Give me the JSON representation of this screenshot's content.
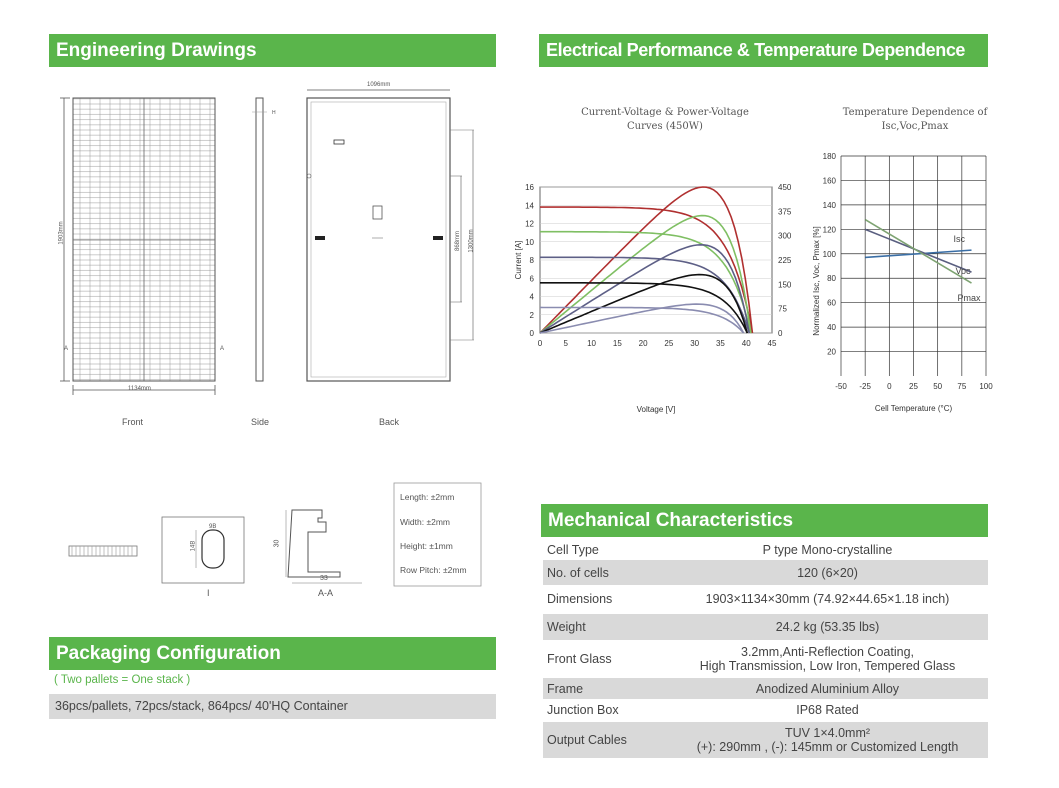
{
  "headers": {
    "engineering": "Engineering Drawings",
    "electrical": "Electrical Performance & Temperature Dependence",
    "mechanical": "Mechanical Characteristics",
    "packaging": "Packaging Configuration"
  },
  "drawings": {
    "front": "Front",
    "side": "Side",
    "back": "Back",
    "width_dim": "1134mm",
    "height_dim": "1903mm",
    "back_width_dim": "1096mm",
    "back_pitch_dim": "868mm",
    "back_height_dim": "1300mm",
    "section_i": "I",
    "section_aa": "A-A",
    "frame_30": "30",
    "frame_33": "33",
    "hole_a": "9B",
    "hole_b": "14B",
    "tol_length": "Length: ±2mm",
    "tol_width": "Width: ±2mm",
    "tol_height": "Height: ±1mm",
    "tol_rowpitch": "Row Pitch: ±2mm"
  },
  "iv_chart_text": {
    "title_line1": "Current-Voltage & Power-Voltage",
    "title_line2": "Curves (450W)",
    "xlabel": "Voltage [V]",
    "ylabel": "Current [A]",
    "y2label": "Power [W]"
  },
  "temp_chart_text": {
    "title_line1": "Temperature Dependence of",
    "title_line2": "Isc,Voc,Pmax",
    "xlabel": "Cell Temperature (°C)",
    "ylabel": "Normalized Isc, Voc, Pmax [%]"
  },
  "chart_data": [
    {
      "type": "line",
      "title": "Current-Voltage & Power-Voltage Curves (450W)",
      "xlabel": "Voltage [V]",
      "ylabel": "Current [A]",
      "y2label": "Power [W]",
      "xlim": [
        0,
        45
      ],
      "ylim": [
        0,
        16
      ],
      "y2lim": [
        0,
        450
      ],
      "xticks": [
        0,
        5,
        10,
        15,
        20,
        25,
        30,
        35,
        40,
        45
      ],
      "yticks": [
        0,
        2,
        4,
        6,
        8,
        10,
        12,
        14,
        16
      ],
      "y2ticks": [
        0,
        75,
        150,
        225,
        300,
        375,
        450
      ],
      "series": [
        {
          "color": "#b03030",
          "isc": 13.8,
          "voc": 41.2,
          "pmax": 450,
          "vmp": 34.5
        },
        {
          "color": "#7fbf63",
          "isc": 11.1,
          "voc": 40.9,
          "pmax": 362,
          "vmp": 34.2
        },
        {
          "color": "#5d5f86",
          "isc": 8.3,
          "voc": 40.6,
          "pmax": 272,
          "vmp": 33.9
        },
        {
          "color": "#111111",
          "isc": 5.5,
          "voc": 40.2,
          "pmax": 180,
          "vmp": 33.6
        },
        {
          "color": "#8a8cb0",
          "isc": 2.8,
          "voc": 39.5,
          "pmax": 89,
          "vmp": 33.2
        }
      ]
    },
    {
      "type": "line",
      "title": "Temperature Dependence of Isc,Voc,Pmax",
      "xlabel": "Cell Temperature (°C)",
      "ylabel": "Normalized Isc, Voc, Pmax [%]",
      "xlim": [
        -50,
        100
      ],
      "ylim": [
        0,
        180
      ],
      "xticks": [
        -50,
        -25,
        0,
        25,
        50,
        75,
        100
      ],
      "yticks": [
        20,
        40,
        60,
        80,
        100,
        120,
        140,
        160,
        180
      ],
      "series": [
        {
          "name": "Isc",
          "x": [
            -25,
            85
          ],
          "y": [
            97,
            103
          ],
          "color": "#3a6ea5"
        },
        {
          "name": "Voc",
          "x": [
            -25,
            85
          ],
          "y": [
            120,
            85
          ],
          "color": "#5a5f80"
        },
        {
          "name": "Pmax",
          "x": [
            -25,
            85
          ],
          "y": [
            128,
            76
          ],
          "color": "#7ea372"
        }
      ]
    }
  ],
  "mechanical": [
    {
      "label": "Cell Type",
      "value1": "P type Mono-crystalline",
      "value2": ""
    },
    {
      "label": "No. of cells",
      "value1": "120 (6×20)",
      "value2": ""
    },
    {
      "label": "Dimensions",
      "value1": "1903×1134×30mm (74.92×44.65×1.18 inch)",
      "value2": ""
    },
    {
      "label": "Weight",
      "value1": "24.2 kg (53.35 lbs)",
      "value2": ""
    },
    {
      "label": "Front Glass",
      "value1": "3.2mm,Anti-Reflection Coating,",
      "value2": "High Transmission, Low Iron, Tempered Glass"
    },
    {
      "label": "Frame",
      "value1": "Anodized Aluminium Alloy",
      "value2": ""
    },
    {
      "label": "Junction Box",
      "value1": "IP68 Rated",
      "value2": ""
    },
    {
      "label": "Output Cables",
      "value1": "TUV 1×4.0mm²",
      "value2": "(+): 290mm , (-): 145mm or Customized Length"
    }
  ],
  "packaging": {
    "note": "( Two pallets = One stack )",
    "detail": "36pcs/pallets, 72pcs/stack, 864pcs/ 40'HQ Container"
  },
  "colors": {
    "accent": "#5ab54b",
    "row_shade": "#d9d9d9"
  }
}
